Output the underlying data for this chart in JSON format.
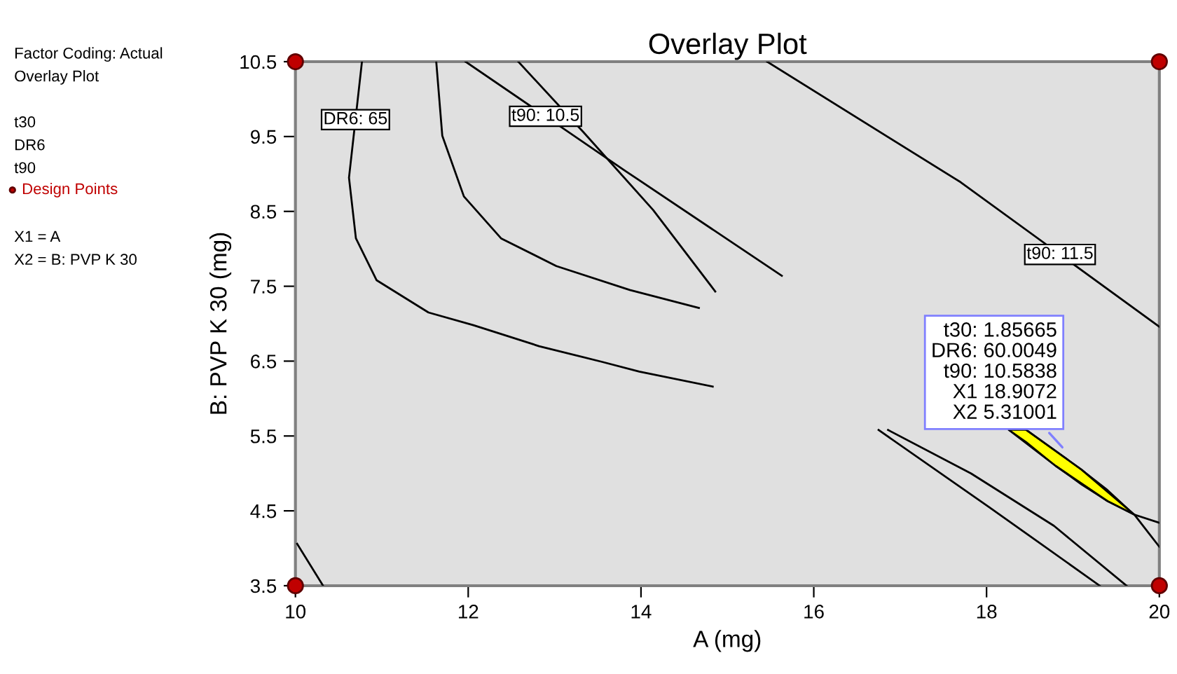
{
  "chart_data": {
    "type": "line",
    "title": "Overlay Plot",
    "xlabel": "A (mg)",
    "ylabel": "B: PVP K 30 (mg)",
    "xlim": [
      10,
      20
    ],
    "ylim": [
      3.5,
      10.5
    ],
    "xticks": [
      10,
      12,
      14,
      16,
      18,
      20
    ],
    "yticks": [
      3.5,
      4.5,
      5.5,
      6.5,
      7.5,
      8.5,
      9.5,
      10.5
    ],
    "grid": false,
    "legend": "left",
    "marker": "none",
    "line_style": "solid",
    "series": [
      {
        "color": "#ffff00",
        "x": [
          18.26,
          18.46,
          18.8,
          19.1,
          19.4,
          19.71
        ],
        "values": [
          null,
          null,
          null,
          null,
          null,
          null
        ],
        "lower": [
          5.58,
          5.42,
          5.1,
          4.85,
          4.63,
          4.45
        ],
        "upper": [
          5.58,
          5.58,
          5.3,
          5.05,
          4.78,
          4.45
        ]
      },
      {
        "name": "DR6: 65",
        "color": "#000000",
        "x": [
          10.77,
          10.62,
          10.7,
          10.94,
          11.54,
          12.06,
          12.82,
          13.55,
          13.98,
          14.83
        ],
        "values": [
          10.5,
          8.95,
          8.14,
          7.58,
          7.15,
          6.98,
          6.7,
          6.49,
          6.36,
          6.16
        ]
      },
      {
        "color": "#000000",
        "x": [
          11.63,
          11.7,
          11.95,
          12.38,
          13.02,
          13.87,
          14.67
        ],
        "values": [
          10.5,
          9.51,
          8.7,
          8.14,
          7.77,
          7.45,
          7.21
        ]
      },
      {
        "name": "t90: 10.5",
        "color": "#000000",
        "x": [
          11.97,
          13.82,
          15.63
        ],
        "values": [
          10.5,
          9.04,
          7.64
        ]
      },
      {
        "color": "#000000",
        "x": [
          12.58,
          13.34,
          14.14,
          14.86,
          null,
          16.75,
          18.03,
          19.31
        ],
        "values": [
          10.5,
          9.55,
          8.52,
          7.43,
          null,
          5.58,
          4.55,
          3.5
        ]
      },
      {
        "name": "t90: 11.5",
        "color": "#000000",
        "x": [
          15.46,
          17.7,
          20.0
        ],
        "values": [
          10.5,
          8.89,
          6.96
        ]
      },
      {
        "color": "#000000",
        "x": [
          16.86,
          17.82,
          18.78,
          19.62
        ],
        "values": [
          5.58,
          5.0,
          4.3,
          3.5
        ]
      },
      {
        "color": "#000000",
        "x": [
          18.26,
          18.8,
          19.4,
          19.71,
          20.0
        ],
        "values": [
          5.58,
          5.1,
          4.63,
          4.45,
          4.02
        ]
      },
      {
        "color": "#000000",
        "x": [
          18.46,
          19.1,
          19.71,
          20.0
        ],
        "values": [
          5.58,
          5.05,
          4.45,
          4.34
        ]
      },
      {
        "color": "#000000",
        "x": [
          10.02,
          10.32
        ],
        "values": [
          4.06,
          3.5
        ]
      },
      {
        "type": "scatter",
        "marker": "circle",
        "name": "Design Points",
        "color": "#c00000",
        "x": [
          10,
          20,
          10,
          20
        ],
        "values": [
          10.5,
          10.5,
          3.5,
          3.5
        ]
      }
    ],
    "annotations": [
      "Factor Coding: Actual",
      "Overlay Plot",
      "t30",
      "DR6",
      "t90",
      "X1 = A",
      "X2 = B: PVP K 30",
      {
        "text": "t30: 1.85665\nDR6: 60.0049\nt90: 10.5838\nX1 18.9072\nX2 5.31001",
        "x": 18.9072,
        "y": 5.31001
      }
    ]
  }
}
